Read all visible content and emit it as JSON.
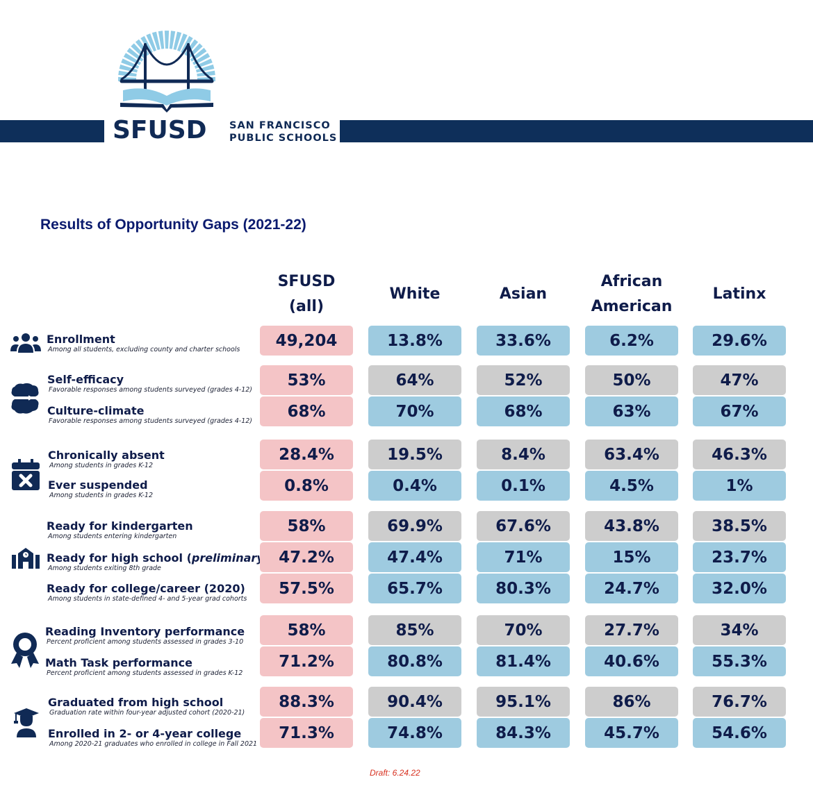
{
  "header": {
    "logo_word": "SFUSD",
    "logo_sub_line1": "SAN FRANCISCO",
    "logo_sub_line2": "PUBLIC SCHOOLS",
    "colors": {
      "bar": "#0e2f5a",
      "sun_rays": "#8fcbe6",
      "bridge": "#102a55"
    }
  },
  "title": "Results of Opportunity Gaps (2021-22)",
  "columns": [
    {
      "line1": "SFUSD",
      "line2": "(all)"
    },
    {
      "line1": "White",
      "line2": ""
    },
    {
      "line1": "Asian",
      "line2": ""
    },
    {
      "line1": "African",
      "line2": "American"
    },
    {
      "line1": "Latinx",
      "line2": ""
    }
  ],
  "colors": {
    "district": "#f4c4c6",
    "highlight_blue": "#9ecbe0",
    "highlight_gray": "#cdcdcd",
    "text": "#0f1c4a",
    "title": "#0a1a6e",
    "draft": "#d7301f"
  },
  "groups": [
    {
      "icon": "people-icon"
    },
    {
      "icon": "brain-icon"
    },
    {
      "icon": "calendar-x-icon"
    },
    {
      "icon": "school-icon"
    },
    {
      "icon": "award-ribbon-icon"
    },
    {
      "icon": "graduate-icon"
    }
  ],
  "rows": [
    {
      "name": "Enrollment",
      "desc": "Among all students, excluding county and charter schools",
      "values": [
        "49,204",
        "13.8%",
        "33.6%",
        "6.2%",
        "29.6%"
      ],
      "shade": "blue"
    },
    {
      "name": "Self-efficacy",
      "desc": "Favorable responses among students surveyed (grades 4-12)",
      "values": [
        "53%",
        "64%",
        "52%",
        "50%",
        "47%"
      ],
      "shade": "gray"
    },
    {
      "name": "Culture-climate",
      "desc": "Favorable responses among students surveyed (grades 4-12)",
      "values": [
        "68%",
        "70%",
        "68%",
        "63%",
        "67%"
      ],
      "shade": "blue"
    },
    {
      "name": "Chronically absent",
      "desc": "Among students in grades K-12",
      "values": [
        "28.4%",
        "19.5%",
        "8.4%",
        "63.4%",
        "46.3%"
      ],
      "shade": "gray"
    },
    {
      "name": "Ever suspended",
      "desc": "Among students in grades K-12",
      "values": [
        "0.8%",
        "0.4%",
        "0.1%",
        "4.5%",
        "1%"
      ],
      "shade": "blue"
    },
    {
      "name": "Ready for kindergarten",
      "desc": "Among students entering kindergarten",
      "values": [
        "58%",
        "69.9%",
        "67.6%",
        "43.8%",
        "38.5%"
      ],
      "shade": "gray"
    },
    {
      "name": "Ready for high school (",
      "name_italic": "preliminary",
      "name_end": ")",
      "desc": "Among students exiting 8th grade",
      "values": [
        "47.2%",
        "47.4%",
        "71%",
        "15%",
        "23.7%"
      ],
      "shade": "blue"
    },
    {
      "name": "Ready for college/career (2020)",
      "desc": "Among students in state-defined 4- and 5-year grad cohorts",
      "values": [
        "57.5%",
        "65.7%",
        "80.3%",
        "24.7%",
        "32.0%"
      ],
      "shade": "blue"
    },
    {
      "name": "Reading Inventory performance",
      "desc": "Percent proficient among students assessed in grades 3-10",
      "values": [
        "58%",
        "85%",
        "70%",
        "27.7%",
        "34%"
      ],
      "shade": "gray"
    },
    {
      "name": "Math Task performance",
      "desc": "Percent proficient among students assessed in grades K-12",
      "values": [
        "71.2%",
        "80.8%",
        "81.4%",
        "40.6%",
        "55.3%"
      ],
      "shade": "blue"
    },
    {
      "name": "Graduated from high school",
      "desc": "Graduation rate within four-year adjusted cohort (2020-21)",
      "values": [
        "88.3%",
        "90.4%",
        "95.1%",
        "86%",
        "76.7%"
      ],
      "shade": "gray"
    },
    {
      "name": "Enrolled in 2- or 4-year college",
      "desc": "Among 2020-21 graduates who enrolled in college in Fall 2021",
      "values": [
        "71.3%",
        "74.8%",
        "84.3%",
        "45.7%",
        "54.6%"
      ],
      "shade": "blue"
    }
  ],
  "footer": {
    "draft": "Draft: 6.24.22"
  }
}
